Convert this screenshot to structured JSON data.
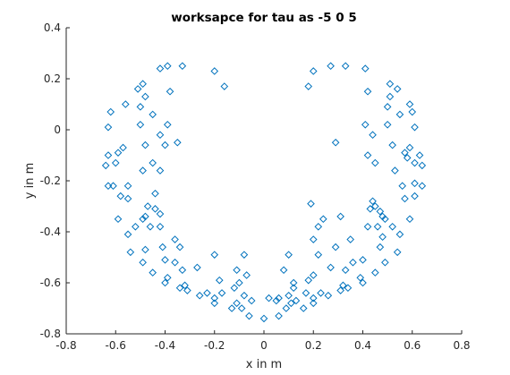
{
  "chart_data": {
    "type": "scatter",
    "title": "worksapce for tau as -5 0 5",
    "xlabel": "x in m",
    "ylabel": "y in m",
    "xlim": [
      -0.8,
      0.8
    ],
    "ylim": [
      -0.8,
      0.4
    ],
    "xticks": [
      "-0.8",
      "-0.6",
      "-0.4",
      "-0.2",
      "0",
      "0.2",
      "0.4",
      "0.6",
      "0.8"
    ],
    "yticks": [
      "-0.8",
      "-0.6",
      "-0.4",
      "-0.2",
      "0",
      "0.2",
      "0.4"
    ],
    "grid": false,
    "marker": "diamond",
    "marker_color": "#0072bd",
    "series": [
      {
        "points": [
          [
            -0.39,
            0.25
          ],
          [
            -0.33,
            0.25
          ],
          [
            -0.42,
            0.24
          ],
          [
            -0.2,
            0.23
          ],
          [
            -0.16,
            0.17
          ],
          [
            -0.38,
            0.15
          ],
          [
            -0.49,
            0.18
          ],
          [
            -0.51,
            0.16
          ],
          [
            -0.48,
            0.13
          ],
          [
            -0.5,
            0.09
          ],
          [
            -0.56,
            0.1
          ],
          [
            -0.45,
            0.06
          ],
          [
            -0.62,
            0.07
          ],
          [
            -0.63,
            0.01
          ],
          [
            -0.5,
            0.02
          ],
          [
            -0.39,
            0.02
          ],
          [
            -0.42,
            -0.02
          ],
          [
            -0.57,
            -0.07
          ],
          [
            -0.59,
            -0.09
          ],
          [
            -0.35,
            -0.05
          ],
          [
            -0.4,
            -0.06
          ],
          [
            -0.48,
            -0.06
          ],
          [
            -0.63,
            -0.1
          ],
          [
            -0.64,
            -0.14
          ],
          [
            -0.6,
            -0.13
          ],
          [
            -0.45,
            -0.13
          ],
          [
            -0.49,
            -0.16
          ],
          [
            -0.42,
            -0.16
          ],
          [
            -0.55,
            -0.22
          ],
          [
            -0.61,
            -0.22
          ],
          [
            -0.63,
            -0.22
          ],
          [
            -0.58,
            -0.26
          ],
          [
            -0.55,
            -0.27
          ],
          [
            -0.44,
            -0.25
          ],
          [
            -0.47,
            -0.3
          ],
          [
            -0.44,
            -0.31
          ],
          [
            -0.42,
            -0.33
          ],
          [
            -0.48,
            -0.34
          ],
          [
            -0.49,
            -0.35
          ],
          [
            -0.52,
            -0.38
          ],
          [
            -0.59,
            -0.35
          ],
          [
            -0.46,
            -0.38
          ],
          [
            -0.42,
            -0.38
          ],
          [
            -0.55,
            -0.41
          ],
          [
            -0.36,
            -0.43
          ],
          [
            -0.34,
            -0.46
          ],
          [
            -0.41,
            -0.46
          ],
          [
            -0.48,
            -0.47
          ],
          [
            -0.54,
            -0.48
          ],
          [
            -0.2,
            -0.49
          ],
          [
            -0.08,
            -0.49
          ],
          [
            -0.4,
            -0.51
          ],
          [
            -0.49,
            -0.52
          ],
          [
            -0.36,
            -0.52
          ],
          [
            -0.33,
            -0.55
          ],
          [
            -0.45,
            -0.56
          ],
          [
            -0.27,
            -0.54
          ],
          [
            -0.11,
            -0.55
          ],
          [
            -0.07,
            -0.57
          ],
          [
            -0.39,
            -0.58
          ],
          [
            -0.18,
            -0.59
          ],
          [
            -0.1,
            -0.6
          ],
          [
            -0.32,
            -0.61
          ],
          [
            -0.4,
            -0.6
          ],
          [
            -0.34,
            -0.62
          ],
          [
            -0.12,
            -0.62
          ],
          [
            -0.31,
            -0.63
          ],
          [
            -0.23,
            -0.64
          ],
          [
            -0.17,
            -0.64
          ],
          [
            -0.26,
            -0.65
          ],
          [
            -0.2,
            -0.66
          ],
          [
            -0.08,
            -0.65
          ],
          [
            -0.2,
            -0.68
          ],
          [
            -0.11,
            -0.68
          ],
          [
            -0.05,
            -0.67
          ],
          [
            -0.09,
            -0.7
          ],
          [
            0.02,
            -0.66
          ],
          [
            0.06,
            -0.66
          ],
          [
            -0.06,
            -0.73
          ],
          [
            -0.13,
            -0.7
          ],
          [
            0.0,
            -0.74
          ],
          [
            0.27,
            0.25
          ],
          [
            0.33,
            0.25
          ],
          [
            0.41,
            0.24
          ],
          [
            0.2,
            0.23
          ],
          [
            0.18,
            0.17
          ],
          [
            0.42,
            0.15
          ],
          [
            0.51,
            0.18
          ],
          [
            0.54,
            0.16
          ],
          [
            0.51,
            0.13
          ],
          [
            0.5,
            0.09
          ],
          [
            0.59,
            0.1
          ],
          [
            0.55,
            0.06
          ],
          [
            0.6,
            0.07
          ],
          [
            0.61,
            0.01
          ],
          [
            0.5,
            0.02
          ],
          [
            0.41,
            0.02
          ],
          [
            0.44,
            -0.02
          ],
          [
            0.59,
            -0.07
          ],
          [
            0.57,
            -0.09
          ],
          [
            0.29,
            -0.05
          ],
          [
            0.42,
            -0.1
          ],
          [
            0.52,
            -0.06
          ],
          [
            0.63,
            -0.1
          ],
          [
            0.64,
            -0.14
          ],
          [
            0.61,
            -0.13
          ],
          [
            0.45,
            -0.13
          ],
          [
            0.53,
            -0.16
          ],
          [
            0.58,
            -0.11
          ],
          [
            0.56,
            -0.22
          ],
          [
            0.61,
            -0.21
          ],
          [
            0.64,
            -0.22
          ],
          [
            0.61,
            -0.26
          ],
          [
            0.57,
            -0.27
          ],
          [
            0.44,
            -0.28
          ],
          [
            0.45,
            -0.3
          ],
          [
            0.43,
            -0.31
          ],
          [
            0.47,
            -0.32
          ],
          [
            0.48,
            -0.34
          ],
          [
            0.49,
            -0.35
          ],
          [
            0.52,
            -0.38
          ],
          [
            0.59,
            -0.35
          ],
          [
            0.46,
            -0.38
          ],
          [
            0.42,
            -0.38
          ],
          [
            0.55,
            -0.41
          ],
          [
            0.35,
            -0.43
          ],
          [
            0.29,
            -0.46
          ],
          [
            0.47,
            -0.46
          ],
          [
            0.48,
            -0.42
          ],
          [
            0.54,
            -0.48
          ],
          [
            0.22,
            -0.49
          ],
          [
            0.1,
            -0.49
          ],
          [
            0.4,
            -0.51
          ],
          [
            0.49,
            -0.52
          ],
          [
            0.36,
            -0.52
          ],
          [
            0.33,
            -0.55
          ],
          [
            0.45,
            -0.56
          ],
          [
            0.27,
            -0.54
          ],
          [
            0.08,
            -0.55
          ],
          [
            0.2,
            -0.57
          ],
          [
            0.39,
            -0.58
          ],
          [
            0.18,
            -0.59
          ],
          [
            0.12,
            -0.6
          ],
          [
            0.32,
            -0.61
          ],
          [
            0.4,
            -0.6
          ],
          [
            0.34,
            -0.62
          ],
          [
            0.12,
            -0.62
          ],
          [
            0.31,
            -0.63
          ],
          [
            0.23,
            -0.64
          ],
          [
            0.17,
            -0.64
          ],
          [
            0.26,
            -0.65
          ],
          [
            0.2,
            -0.66
          ],
          [
            0.1,
            -0.65
          ],
          [
            0.2,
            -0.68
          ],
          [
            0.11,
            -0.68
          ],
          [
            0.05,
            -0.67
          ],
          [
            0.09,
            -0.7
          ],
          [
            0.16,
            -0.7
          ],
          [
            0.13,
            -0.67
          ],
          [
            0.06,
            -0.73
          ],
          [
            0.24,
            -0.35
          ],
          [
            0.19,
            -0.29
          ],
          [
            0.31,
            -0.34
          ],
          [
            0.2,
            -0.43
          ],
          [
            0.22,
            -0.38
          ]
        ]
      }
    ]
  }
}
